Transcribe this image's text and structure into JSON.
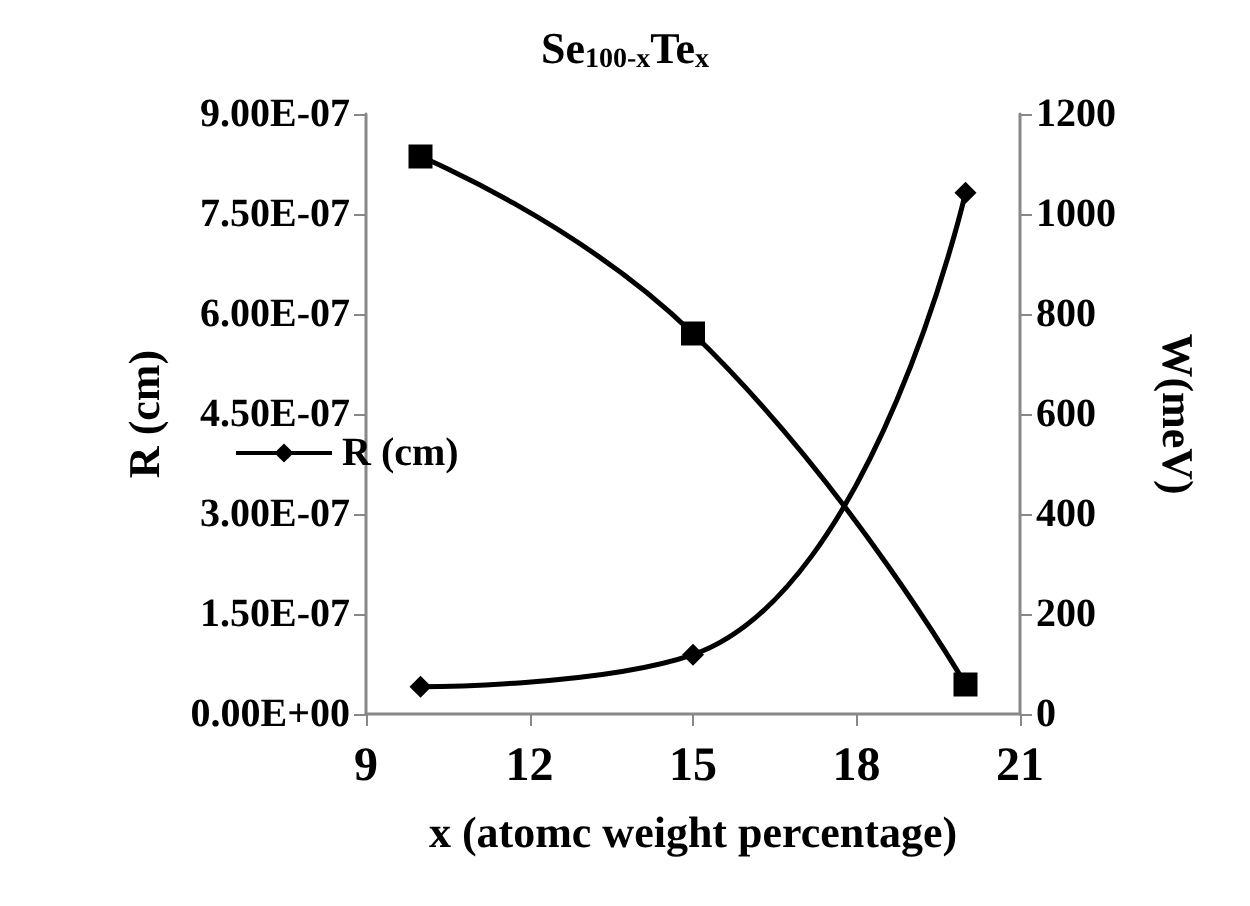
{
  "chart_data": {
    "type": "line",
    "title": "Se$_{100-x}$Te$_{x}$",
    "xlabel": "x (atomc weight percentage)",
    "ylabel": "R (cm)",
    "y2label": "W(meV)",
    "x": [
      10,
      15,
      20
    ],
    "series": [
      {
        "name": "R (cm)",
        "color": "#000000",
        "values": [
          4.1e-08,
          8.9e-08,
          7.82e-07
        ],
        "marker": "diamond"
      },
      {
        "color": "#000000",
        "values": [
          1115,
          761,
          59
        ],
        "axis": "y2",
        "marker": "square"
      }
    ],
    "xlim": [
      9,
      21
    ],
    "xticks": [
      9,
      12,
      15,
      18,
      21
    ],
    "ylim": [
      0,
      9e-07
    ],
    "yticks": [
      {
        "value": 0,
        "label": "0.00E+00"
      },
      {
        "value": 1.5e-07,
        "label": "1.50E-07"
      },
      {
        "value": 3e-07,
        "label": "3.00E-07"
      },
      {
        "value": 4.5e-07,
        "label": "4.50E-07"
      },
      {
        "value": 6e-07,
        "label": "6.00E-07"
      },
      {
        "value": 7.5e-07,
        "label": "7.50E-07"
      },
      {
        "value": 9e-07,
        "label": "9.00E-07"
      }
    ],
    "y2lim": [
      0,
      1200
    ],
    "y2ticks": [
      0,
      200,
      400,
      600,
      800,
      1000,
      1200
    ],
    "grid": false,
    "legend": "left",
    "line_style": "solid"
  }
}
